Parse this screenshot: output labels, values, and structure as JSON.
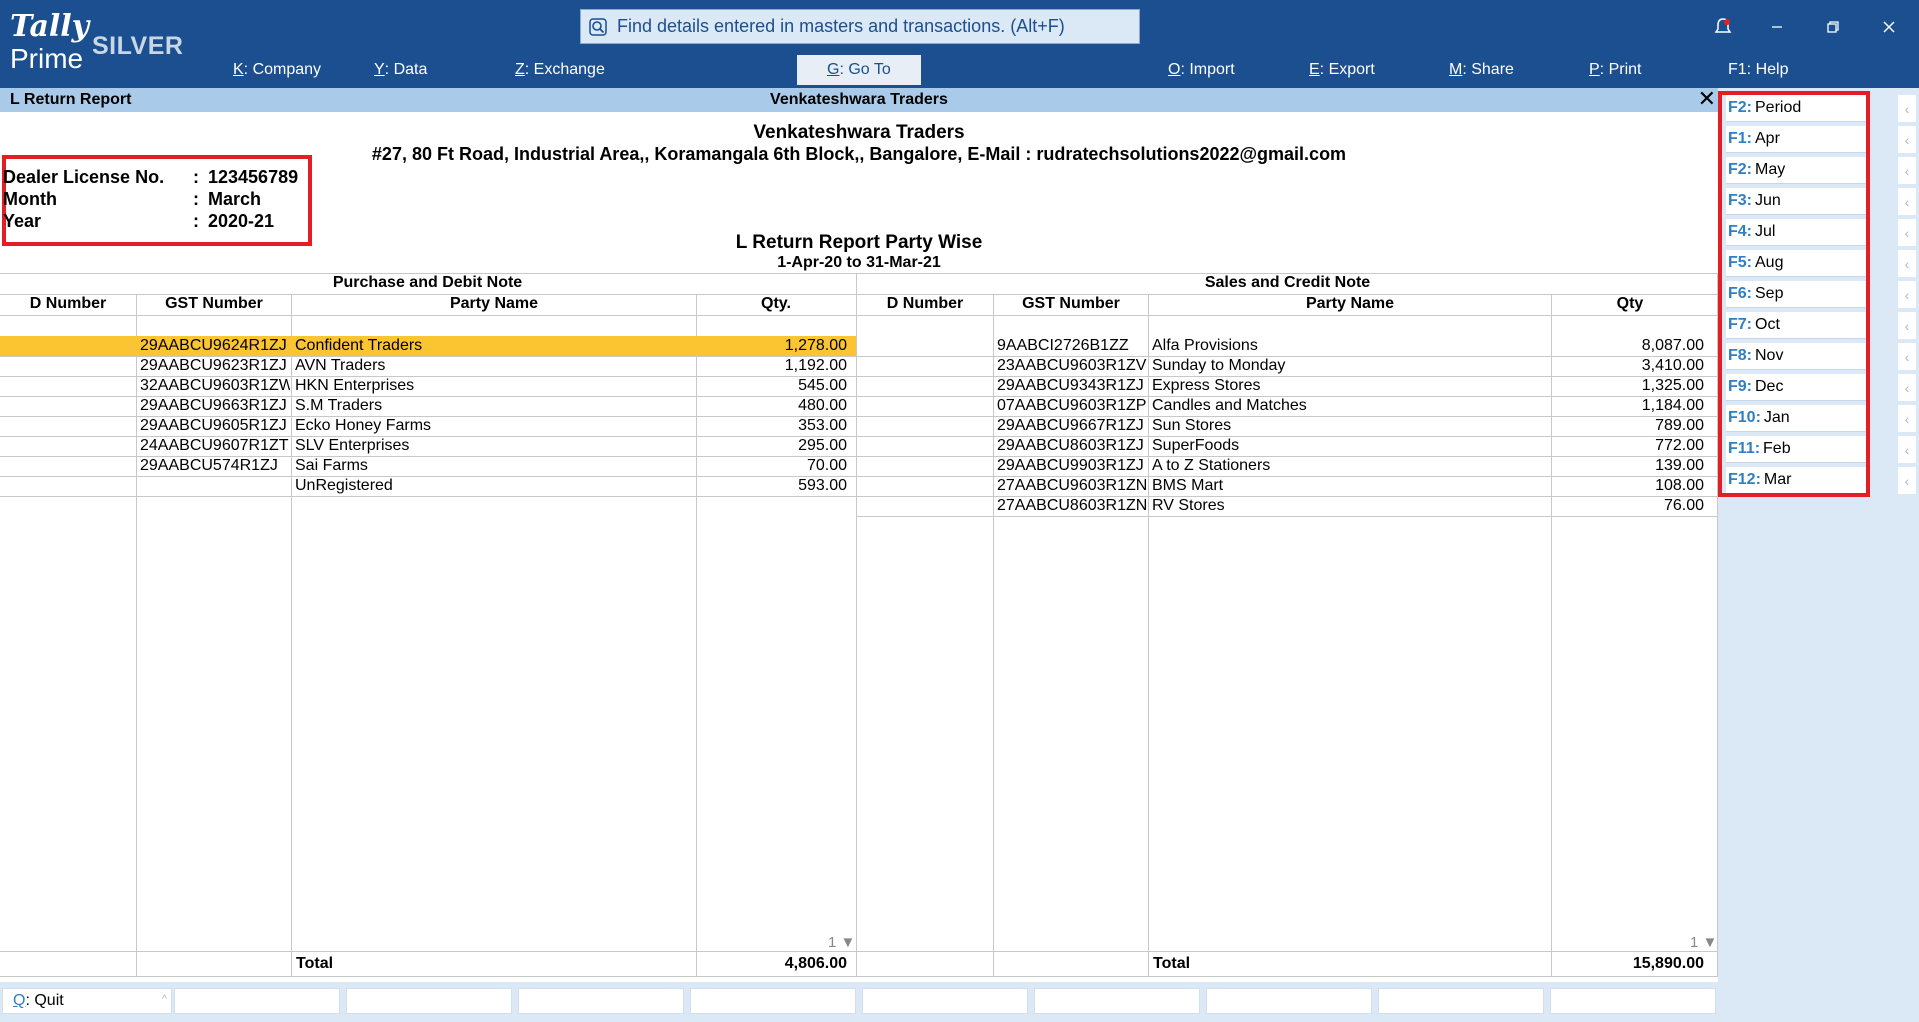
{
  "app": {
    "logo_top": "Tally",
    "logo_bottom": "Prime",
    "edition": "SILVER"
  },
  "search": {
    "text": "Find details entered in masters and transactions. (Alt+F)",
    "icon": "search-icon"
  },
  "menu": [
    {
      "key": "K",
      "label": "Company"
    },
    {
      "key": "Y",
      "label": "Data"
    },
    {
      "key": "Z",
      "label": "Exchange"
    },
    {
      "key": "G",
      "label": "Go To"
    },
    {
      "key": "O",
      "label": "Import"
    },
    {
      "key": "E",
      "label": "Export"
    },
    {
      "key": "M",
      "label": "Share"
    },
    {
      "key": "P",
      "label": "Print"
    },
    {
      "key": "F1",
      "label": "Help"
    }
  ],
  "titlebar": {
    "report_name": "L Return Report",
    "company": "Venkateshwara Traders",
    "close": "✕"
  },
  "header": {
    "company_name": "Venkateshwara Traders",
    "address": "#27, 80 Ft Road, Industrial Area,, Koramangala 6th Block,, Bangalore, E-Mail : rudratechsolutions2022@gmail.com",
    "dealer": [
      {
        "label": "Dealer License No.",
        "value": "123456789"
      },
      {
        "label": "Month",
        "value": "March"
      },
      {
        "label": "Year",
        "value": "2020-21"
      }
    ],
    "colon": ":",
    "report_title": "L Return Report Party Wise",
    "period": "1-Apr-20 to 31-Mar-21"
  },
  "purchase": {
    "section": "Purchase and Debit Note",
    "columns": [
      "D Number",
      "GST Number",
      "Party Name",
      "Qty."
    ],
    "rows": [
      {
        "d": "",
        "gst": "29AABCU9624R1ZJ",
        "party": "Confident Traders",
        "qty": "1,278.00"
      },
      {
        "d": "",
        "gst": "29AABCU9623R1ZJ",
        "party": "AVN Traders",
        "qty": "1,192.00"
      },
      {
        "d": "",
        "gst": "32AABCU9603R1ZW",
        "party": "HKN Enterprises",
        "qty": "545.00"
      },
      {
        "d": "",
        "gst": "29AABCU9663R1ZJ",
        "party": "S.M Traders",
        "qty": "480.00"
      },
      {
        "d": "",
        "gst": "29AABCU9605R1ZJ",
        "party": "Ecko Honey Farms",
        "qty": "353.00"
      },
      {
        "d": "",
        "gst": "24AABCU9607R1ZT",
        "party": "SLV Enterprises",
        "qty": "295.00"
      },
      {
        "d": "",
        "gst": "29AABCU574R1ZJ",
        "party": "Sai Farms",
        "qty": "70.00"
      },
      {
        "d": "",
        "gst": "",
        "party": "UnRegistered",
        "qty": "593.00"
      }
    ],
    "total_label": "Total",
    "total": "4,806.00",
    "page": "1"
  },
  "sales": {
    "section": "Sales and Credit Note",
    "columns": [
      "D Number",
      "GST Number",
      "Party Name",
      "Qty"
    ],
    "rows": [
      {
        "d": "",
        "gst": "9AABCI2726B1ZZ",
        "party": "Alfa Provisions",
        "qty": "8,087.00"
      },
      {
        "d": "",
        "gst": "23AABCU9603R1ZV",
        "party": "Sunday to Monday",
        "qty": "3,410.00"
      },
      {
        "d": "",
        "gst": "29AABCU9343R1ZJ",
        "party": "Express Stores",
        "qty": "1,325.00"
      },
      {
        "d": "",
        "gst": "07AABCU9603R1ZP",
        "party": "Candles and Matches",
        "qty": "1,184.00"
      },
      {
        "d": "",
        "gst": "29AABCU9667R1ZJ",
        "party": "Sun Stores",
        "qty": "789.00"
      },
      {
        "d": "",
        "gst": "29AABCU8603R1ZJ",
        "party": "SuperFoods",
        "qty": "772.00"
      },
      {
        "d": "",
        "gst": "29AABCU9903R1ZJ",
        "party": "A to Z Stationers",
        "qty": "139.00"
      },
      {
        "d": "",
        "gst": "27AABCU9603R1ZN",
        "party": "BMS Mart",
        "qty": "108.00"
      },
      {
        "d": "",
        "gst": "27AABCU8603R1ZN",
        "party": "RV Stores",
        "qty": "76.00"
      }
    ],
    "total_label": "Total",
    "total": "15,890.00",
    "page": "1"
  },
  "right_buttons": [
    {
      "key": "F2:",
      "label": "Period"
    },
    {
      "key": "F1:",
      "label": "Apr"
    },
    {
      "key": "F2:",
      "label": "May"
    },
    {
      "key": "F3:",
      "label": "Jun"
    },
    {
      "key": "F4:",
      "label": "Jul"
    },
    {
      "key": "F5:",
      "label": "Aug"
    },
    {
      "key": "F6:",
      "label": "Sep"
    },
    {
      "key": "F7:",
      "label": "Oct"
    },
    {
      "key": "F8:",
      "label": "Nov"
    },
    {
      "key": "F9:",
      "label": "Dec"
    },
    {
      "key": "F10:",
      "label": "Jan"
    },
    {
      "key": "F11:",
      "label": "Feb"
    },
    {
      "key": "F12:",
      "label": "Mar"
    }
  ],
  "bottom": {
    "quit_key": "Q",
    "quit_label": ": Quit"
  },
  "colors": {
    "topbar": "#1b4f8f",
    "titlebar": "#a9cbe9",
    "highlight_row": "#fbc532",
    "annotation_box": "#e31e24",
    "panel": "#dbe8f6"
  }
}
